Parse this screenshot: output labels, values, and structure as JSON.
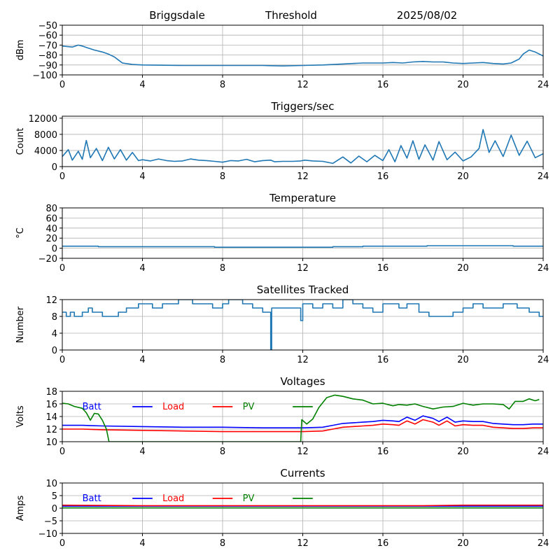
{
  "header": {
    "station": "Briggsdale",
    "mode": "Threshold",
    "date": "2025/08/02"
  },
  "colors": {
    "series": "#1f77b4",
    "batt": "#0000ff",
    "load": "#ff0000",
    "pv": "#008000"
  },
  "chart_data": [
    {
      "id": "signal",
      "type": "line",
      "title": "",
      "ylabel": "dBm",
      "xlim": [
        0,
        24
      ],
      "ylim": [
        -100,
        -50
      ],
      "xticks": [
        0,
        4,
        8,
        12,
        16,
        20,
        24
      ],
      "yticks": [
        -100,
        -90,
        -80,
        -70,
        -60,
        -50
      ],
      "grid": true,
      "series": [
        {
          "color": "#1f77b4",
          "x": [
            0,
            0.5,
            0.8,
            1.0,
            1.3,
            1.6,
            2.0,
            2.3,
            2.6,
            2.8,
            3.0,
            3.5,
            4.0,
            6,
            8,
            10,
            11,
            12,
            13,
            14,
            15,
            16,
            16.5,
            17,
            17.5,
            18,
            18.5,
            19,
            19.5,
            20,
            20.5,
            21,
            21.5,
            22,
            22.4,
            22.8,
            23.0,
            23.3,
            23.6,
            24
          ],
          "y": [
            -71,
            -72,
            -70,
            -71,
            -73,
            -75,
            -77,
            -79,
            -82,
            -85,
            -88,
            -89.5,
            -90,
            -90.5,
            -90.5,
            -90.5,
            -91,
            -90.5,
            -90,
            -89,
            -88,
            -88,
            -87.5,
            -88,
            -87,
            -86.5,
            -87,
            -87,
            -88,
            -88.5,
            -88,
            -87.5,
            -88.5,
            -89,
            -88,
            -84,
            -79,
            -75,
            -77,
            -81
          ]
        }
      ]
    },
    {
      "id": "triggers",
      "type": "line",
      "title": "Triggers/sec",
      "ylabel": "Count",
      "xlim": [
        0,
        24
      ],
      "ylim": [
        0,
        12500
      ],
      "xticks": [
        0,
        4,
        8,
        12,
        16,
        20,
        24
      ],
      "yticks": [
        0,
        4000,
        8000,
        12000
      ],
      "grid": true,
      "series": [
        {
          "color": "#1f77b4",
          "x": [
            0,
            0.3,
            0.5,
            0.8,
            1.0,
            1.2,
            1.4,
            1.7,
            2.0,
            2.3,
            2.6,
            2.9,
            3.2,
            3.5,
            3.8,
            4.0,
            4.4,
            4.8,
            5.2,
            5.6,
            6.0,
            6.4,
            6.8,
            7.2,
            7.6,
            8.0,
            8.4,
            8.8,
            9.2,
            9.6,
            10.0,
            10.4,
            10.6,
            11.0,
            11.5,
            11.9,
            12.1,
            12.5,
            13.0,
            13.5,
            14.0,
            14.4,
            14.8,
            15.2,
            15.6,
            16.0,
            16.3,
            16.6,
            16.9,
            17.2,
            17.5,
            17.8,
            18.1,
            18.5,
            18.8,
            19.2,
            19.6,
            20.0,
            20.4,
            20.8,
            21.0,
            21.3,
            21.6,
            22.0,
            22.4,
            22.8,
            23.2,
            23.6,
            24.0
          ],
          "y": [
            2500,
            4200,
            1600,
            3800,
            1800,
            6500,
            2200,
            4500,
            1500,
            4800,
            1900,
            4200,
            1600,
            3500,
            1500,
            1700,
            1400,
            1900,
            1500,
            1300,
            1400,
            1900,
            1600,
            1500,
            1300,
            1100,
            1500,
            1400,
            1800,
            1200,
            1500,
            1600,
            1200,
            1300,
            1300,
            1400,
            1600,
            1400,
            1300,
            800,
            2400,
            900,
            2600,
            1200,
            2800,
            1500,
            4200,
            1200,
            5200,
            2100,
            6400,
            1800,
            5400,
            1600,
            6200,
            1700,
            3600,
            1400,
            2400,
            4500,
            9200,
            3500,
            6400,
            2500,
            7800,
            2800,
            6300,
            2200,
            3200
          ]
        }
      ]
    },
    {
      "id": "temperature",
      "type": "line",
      "title": "Temperature",
      "ylabel": "°C",
      "xlim": [
        0,
        24
      ],
      "ylim": [
        -20,
        80
      ],
      "xticks": [
        0,
        4,
        8,
        12,
        16,
        20,
        24
      ],
      "yticks": [
        -20,
        0,
        20,
        40,
        60,
        80
      ],
      "grid": true,
      "series": [
        {
          "color": "#1f77b4",
          "x": [
            0,
            1.8,
            1.8,
            7.6,
            7.6,
            13.5,
            13.5,
            15,
            15,
            18.2,
            18.2,
            22.5,
            22.5,
            24
          ],
          "y": [
            4,
            4,
            3,
            3,
            2,
            2,
            3,
            3,
            4,
            4,
            5,
            5,
            4,
            4
          ]
        }
      ]
    },
    {
      "id": "satellites",
      "type": "line",
      "title": "Satellites Tracked",
      "ylabel": "Number",
      "xlim": [
        0,
        24
      ],
      "ylim": [
        0,
        12
      ],
      "xticks": [
        0,
        4,
        8,
        12,
        16,
        20,
        24
      ],
      "yticks": [
        0,
        4,
        8,
        12
      ],
      "grid": true,
      "series": [
        {
          "color": "#1f77b4",
          "x": [
            0,
            0.2,
            0.2,
            0.4,
            0.4,
            0.6,
            0.6,
            1.0,
            1.0,
            1.3,
            1.3,
            1.5,
            1.5,
            2.0,
            2.0,
            2.8,
            2.8,
            3.2,
            3.2,
            3.8,
            3.8,
            4.5,
            4.5,
            5.0,
            5.0,
            5.8,
            5.8,
            6.5,
            6.5,
            7.5,
            7.5,
            8.0,
            8.0,
            8.3,
            8.3,
            9.0,
            9.0,
            9.5,
            9.5,
            10.0,
            10.0,
            10.4,
            10.4,
            10.45,
            10.45,
            11.9,
            11.9,
            12.0,
            12.0,
            12.5,
            12.5,
            13.0,
            13.0,
            13.5,
            13.5,
            14.0,
            14.0,
            14.5,
            14.5,
            15.0,
            15.0,
            15.5,
            15.5,
            16.0,
            16.0,
            16.8,
            16.8,
            17.2,
            17.2,
            17.8,
            17.8,
            18.3,
            18.3,
            19.5,
            19.5,
            20.0,
            20.0,
            20.5,
            20.5,
            21.0,
            21.0,
            22.0,
            22.0,
            22.7,
            22.7,
            23.3,
            23.3,
            23.8,
            23.8,
            24.0
          ],
          "y": [
            9,
            9,
            8,
            8,
            9,
            9,
            8,
            8,
            9,
            9,
            10,
            10,
            9,
            9,
            8,
            8,
            9,
            9,
            10,
            10,
            11,
            11,
            10,
            10,
            11,
            11,
            12,
            12,
            11,
            11,
            10,
            10,
            11,
            11,
            12,
            12,
            11,
            11,
            10,
            10,
            9,
            9,
            0,
            0,
            10,
            10,
            7,
            7,
            11,
            11,
            10,
            10,
            11,
            11,
            10,
            10,
            12,
            12,
            11,
            11,
            10,
            10,
            9,
            9,
            11,
            11,
            10,
            10,
            11,
            11,
            9,
            9,
            8,
            8,
            9,
            9,
            10,
            10,
            11,
            11,
            10,
            10,
            11,
            11,
            10,
            10,
            9,
            9,
            8,
            8
          ]
        }
      ]
    },
    {
      "id": "voltages",
      "type": "line",
      "title": "Voltages",
      "ylabel": "Volts",
      "xlim": [
        0,
        24
      ],
      "ylim": [
        10,
        18
      ],
      "xticks": [
        0,
        4,
        8,
        12,
        16,
        20,
        24
      ],
      "yticks": [
        10,
        12,
        14,
        16,
        18
      ],
      "grid": true,
      "legend": "top-left, horizontal",
      "series": [
        {
          "name": "Batt",
          "color": "#0000ff",
          "x": [
            0,
            1,
            2,
            4,
            6,
            8,
            10,
            12,
            13,
            13.5,
            14,
            15,
            15.5,
            16,
            16.5,
            16.8,
            17.2,
            17.6,
            18,
            18.5,
            18.8,
            19.2,
            19.6,
            20,
            20.5,
            21,
            21.5,
            22,
            22.5,
            23,
            23.5,
            24
          ],
          "y": [
            12.6,
            12.6,
            12.5,
            12.4,
            12.3,
            12.3,
            12.2,
            12.2,
            12.3,
            12.6,
            12.9,
            13.1,
            13.2,
            13.4,
            13.3,
            13.2,
            13.9,
            13.4,
            14.1,
            13.7,
            13.2,
            13.9,
            13.1,
            13.3,
            13.2,
            13.2,
            12.9,
            12.8,
            12.7,
            12.7,
            12.8,
            12.8
          ],
          "legend_x": 1.0
        },
        {
          "name": "Load",
          "color": "#ff0000",
          "x": [
            0,
            1,
            2,
            4,
            6,
            8,
            10,
            12,
            13,
            13.5,
            14,
            15,
            15.5,
            16,
            16.5,
            16.8,
            17.2,
            17.6,
            18,
            18.5,
            18.8,
            19.2,
            19.6,
            20,
            20.5,
            21,
            21.5,
            22,
            22.5,
            23,
            23.5,
            24
          ],
          "y": [
            12.0,
            12.0,
            11.9,
            11.8,
            11.7,
            11.6,
            11.6,
            11.6,
            11.7,
            12.0,
            12.3,
            12.5,
            12.6,
            12.8,
            12.7,
            12.6,
            13.3,
            12.8,
            13.5,
            13.1,
            12.6,
            13.3,
            12.5,
            12.7,
            12.6,
            12.6,
            12.3,
            12.2,
            12.1,
            12.1,
            12.2,
            12.2
          ],
          "legend_x": 5.0
        },
        {
          "name": "PV",
          "color": "#008000",
          "x": [
            0,
            0.3,
            0.6,
            1.0,
            1.2,
            1.4,
            1.6,
            1.8,
            2.0,
            2.2,
            2.3,
            2.33,
            11.9,
            11.95,
            12.2,
            12.5,
            12.8,
            13.2,
            13.6,
            14.0,
            14.5,
            15.0,
            15.5,
            16.0,
            16.5,
            16.8,
            17.2,
            17.6,
            18.0,
            18.5,
            19.0,
            19.5,
            20.0,
            20.5,
            21.0,
            21.5,
            22.0,
            22.3,
            22.6,
            23.0,
            23.3,
            23.6,
            23.8
          ],
          "y": [
            16.1,
            16.0,
            15.6,
            15.3,
            14.6,
            13.4,
            14.5,
            14.4,
            13.4,
            12.0,
            10.5,
            10.0,
            10.0,
            13.5,
            12.8,
            13.6,
            15.4,
            17.0,
            17.4,
            17.2,
            16.8,
            16.6,
            16.0,
            16.1,
            15.7,
            15.9,
            15.8,
            16.0,
            15.6,
            15.2,
            15.5,
            15.6,
            16.1,
            15.8,
            16.0,
            16.0,
            15.9,
            15.2,
            16.4,
            16.4,
            16.8,
            16.5,
            16.7
          ],
          "legend_x": 9.0
        }
      ]
    },
    {
      "id": "currents",
      "type": "line",
      "title": "Currents",
      "ylabel": "Amps",
      "xlim": [
        0,
        24
      ],
      "ylim": [
        -10,
        10
      ],
      "xticks": [
        0,
        4,
        8,
        12,
        16,
        20,
        24
      ],
      "yticks": [
        -10,
        -5,
        0,
        5,
        10
      ],
      "grid": true,
      "legend": "top-left, horizontal",
      "series": [
        {
          "name": "Batt",
          "color": "#0000ff",
          "x": [
            0,
            24
          ],
          "y": [
            0.8,
            0.8
          ],
          "legend_x": 1.0
        },
        {
          "name": "Load",
          "color": "#ff0000",
          "x": [
            0,
            4,
            8,
            12,
            16,
            18,
            20,
            22,
            24
          ],
          "y": [
            1.2,
            1.0,
            1.0,
            1.0,
            1.0,
            1.0,
            1.2,
            1.2,
            1.2
          ],
          "legend_x": 5.0
        },
        {
          "name": "PV",
          "color": "#008000",
          "x": [
            0,
            24
          ],
          "y": [
            0.1,
            0.1
          ],
          "legend_x": 9.0
        }
      ]
    }
  ]
}
